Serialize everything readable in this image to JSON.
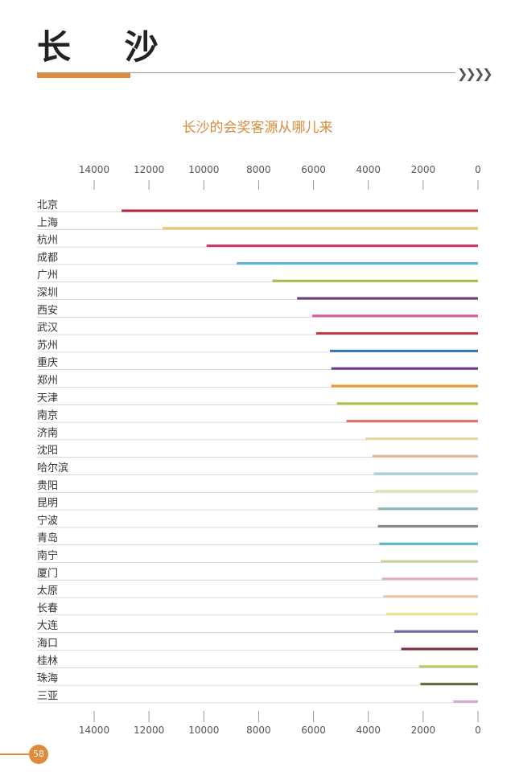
{
  "header": {
    "title": "长 沙",
    "chevrons": "❯❯❯❯"
  },
  "chart_data": {
    "type": "bar",
    "orientation": "horizontal",
    "title": "长沙的会奖客源从哪儿来",
    "xlim": [
      0,
      14000
    ],
    "x_reversed": true,
    "tick_values": [
      14000,
      12000,
      10000,
      8000,
      6000,
      4000,
      2000,
      0
    ],
    "tick_labels": [
      "14000",
      "12000",
      "10000",
      "8000",
      "6000",
      "4000",
      "2000",
      "0"
    ],
    "categories": [
      "北京",
      "上海",
      "杭州",
      "成都",
      "广州",
      "深圳",
      "西安",
      "武汉",
      "苏州",
      "重庆",
      "郑州",
      "天津",
      "南京",
      "济南",
      "沈阳",
      "哈尔滨",
      "贵阳",
      "昆明",
      "宁波",
      "青岛",
      "南宁",
      "厦门",
      "太原",
      "长春",
      "大连",
      "海口",
      "桂林",
      "珠海",
      "三亚"
    ],
    "values": [
      13000,
      11500,
      9900,
      8800,
      7500,
      6600,
      6050,
      5900,
      5400,
      5350,
      5350,
      5150,
      4800,
      4100,
      3850,
      3800,
      3750,
      3650,
      3650,
      3600,
      3550,
      3500,
      3450,
      3350,
      3050,
      2800,
      2150,
      2100,
      900
    ],
    "colors": [
      "#b2283a",
      "#e8c96a",
      "#d1356b",
      "#5ab2dc",
      "#a7c24a",
      "#6a3b7a",
      "#d85c9a",
      "#c63346",
      "#3a72b8",
      "#6a3d8a",
      "#e8962f",
      "#a8c14a",
      "#e07366",
      "#e8d79a",
      "#e0b894",
      "#a6d0d8",
      "#e2e2a8",
      "#8fb8b8",
      "#888888",
      "#5ab8c8",
      "#c2d69a",
      "#e8a8c8",
      "#ecc8a8",
      "#f0e28a",
      "#6a6a9e",
      "#7a2d3a",
      "#b8c86a",
      "#5a6b3a",
      "#d8a8d4"
    ]
  },
  "page_number": "58"
}
